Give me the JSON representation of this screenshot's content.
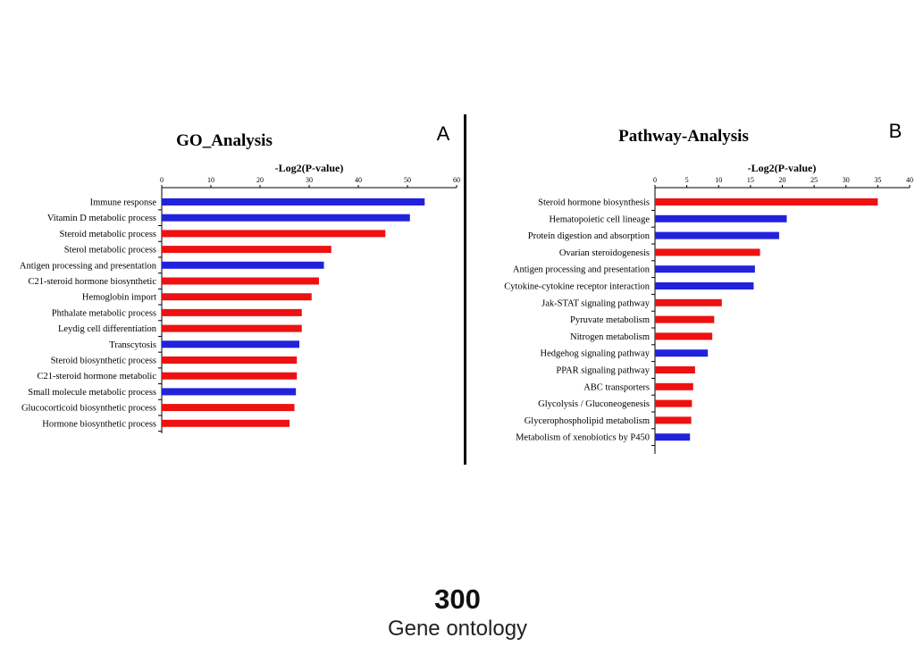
{
  "chart_data": [
    {
      "type": "bar",
      "orientation": "horizontal",
      "panel_letter": "A",
      "title": "GO_Analysis",
      "xlabel": "-Log2(P-value)",
      "xlim": [
        0,
        60
      ],
      "xticks": [
        0,
        10,
        20,
        30,
        40,
        50,
        60
      ],
      "categories": [
        "Immune response",
        "Vitamin D metabolic process",
        "Steroid metabolic process",
        "Sterol metabolic process",
        "Antigen processing and presentation",
        "C21-steroid hormone biosynthetic",
        "Hemoglobin import",
        "Phthalate metabolic process",
        "Leydig cell differentiation",
        "Transcytosis",
        "Steroid biosynthetic process",
        "C21-steroid hormone metabolic",
        "Small molecule metabolic process",
        "Glucocorticoid biosynthetic process",
        "Hormone biosynthetic process"
      ],
      "values": [
        53.5,
        50.5,
        45.5,
        34.5,
        33,
        32,
        30.5,
        28.5,
        28.5,
        28,
        27.5,
        27.5,
        27.3,
        27,
        26
      ],
      "colors": [
        "#2222dd",
        "#2222dd",
        "#ee1111",
        "#ee1111",
        "#2222dd",
        "#ee1111",
        "#ee1111",
        "#ee1111",
        "#ee1111",
        "#2222dd",
        "#ee1111",
        "#ee1111",
        "#2222dd",
        "#ee1111",
        "#ee1111"
      ]
    },
    {
      "type": "bar",
      "orientation": "horizontal",
      "panel_letter": "B",
      "title": "Pathway-Analysis",
      "xlabel": "-Log2(P-value)",
      "xlim": [
        0,
        40
      ],
      "xticks": [
        0,
        5,
        10,
        15,
        20,
        25,
        30,
        35,
        40
      ],
      "categories": [
        "Steroid hormone biosynthesis",
        "Hematopoietic cell lineage",
        "Protein digestion and absorption",
        "Ovarian steroidogenesis",
        "Antigen processing and presentation",
        "Cytokine-cytokine receptor interaction",
        "Jak-STAT signaling pathway",
        "Pyruvate metabolism",
        "Nitrogen metabolism",
        "Hedgehog signaling pathway",
        "PPAR signaling pathway",
        "ABC transporters",
        "Glycolysis / Gluconeogenesis",
        "Glycerophospholipid metabolism",
        "Metabolism of xenobiotics by P450"
      ],
      "values": [
        35,
        20.7,
        19.5,
        16.5,
        15.7,
        15.5,
        10.5,
        9.3,
        9,
        8.3,
        6.3,
        6,
        5.8,
        5.7,
        5.5
      ],
      "colors": [
        "#ee1111",
        "#2222dd",
        "#2222dd",
        "#ee1111",
        "#2222dd",
        "#2222dd",
        "#ee1111",
        "#ee1111",
        "#ee1111",
        "#2222dd",
        "#ee1111",
        "#ee1111",
        "#ee1111",
        "#ee1111",
        "#2222dd"
      ]
    }
  ],
  "footer": {
    "number": "300",
    "caption": "Gene ontology"
  }
}
